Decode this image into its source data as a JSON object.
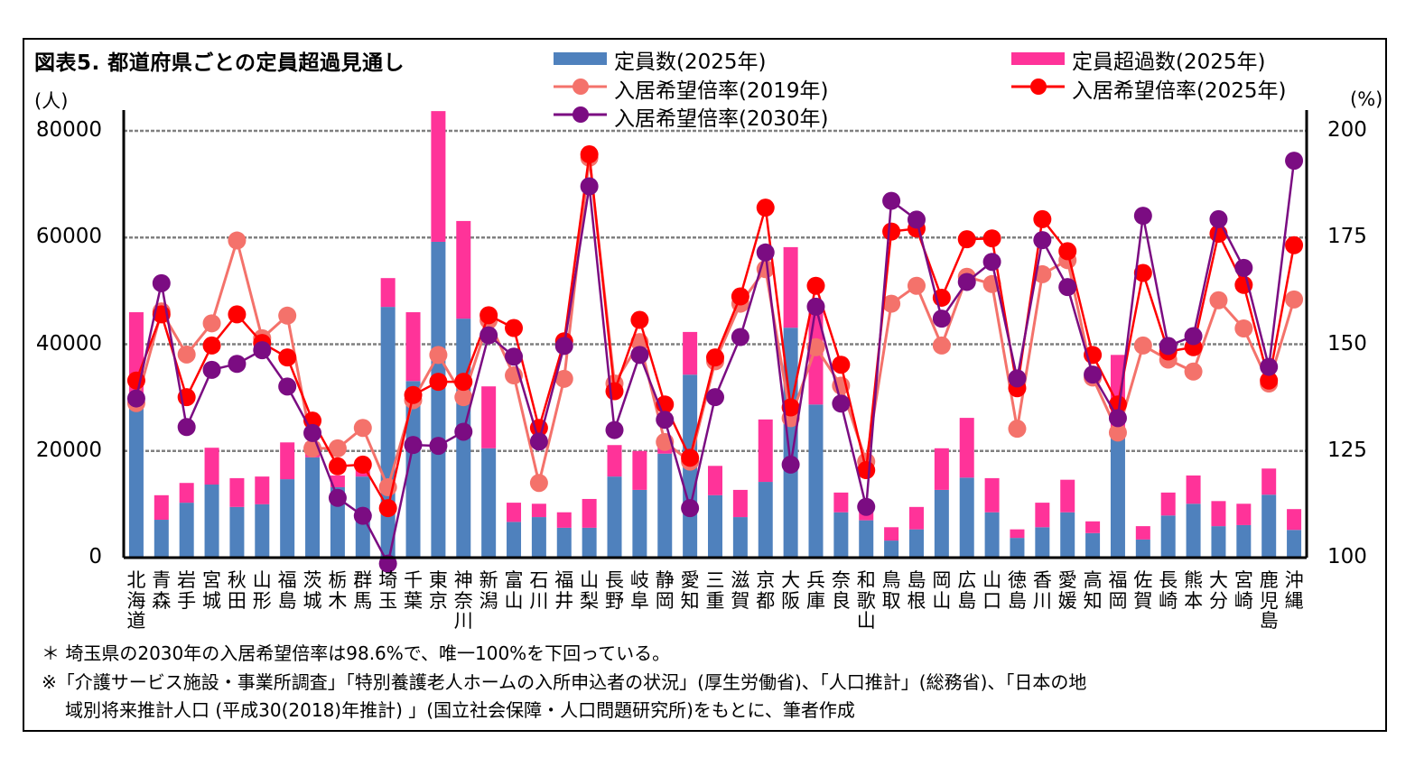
{
  "title": "図表5.  都道府県ごとの定員超過見通し",
  "left_unit": "(人)",
  "right_unit": "(%)",
  "colors": {
    "capacity": "#4F81BD",
    "excess": "#FF3399",
    "rate2019": "#F4726B",
    "rate2025": "#FF0000",
    "rate2030": "#7B0C82",
    "grid": "#808080"
  },
  "legend": {
    "capacity": "定員数(2025年)",
    "excess": "定員超過数(2025年)",
    "rate2019": "入居希望倍率(2019年)",
    "rate2025": "入居希望倍率(2025年)",
    "rate2030": "入居希望倍率(2030年)"
  },
  "notes": {
    "asterisk": "＊ 埼玉県の2030年の入居希望倍率は98.6%で、唯一100%を下回っている。",
    "source_line1": "※「介護サービス施設・事業所調査」「特別養護老人ホームの入所申込者の状況」(厚生労働省)、「人口推計」(総務省)、「日本の地",
    "source_line2": "域別将来推計人口 (平成30(2018)年推計) 」(国立社会保障・人口問題研究所)をもとに、筆者作成"
  },
  "chart_data": {
    "type": "bar+line",
    "legend_position": "top",
    "grid": true,
    "ylim_left": [
      0,
      80000
    ],
    "yticks_left": [
      "0",
      "20000",
      "40000",
      "60000",
      "80000"
    ],
    "ylim_right": [
      100,
      200
    ],
    "yticks_right": [
      "100",
      "125",
      "150",
      "175",
      "200"
    ],
    "categories": [
      "北海道",
      "青森",
      "岩手",
      "宮城",
      "秋田",
      "山形",
      "福島",
      "茨城",
      "栃木",
      "群馬",
      "埼玉",
      "千葉",
      "東京",
      "神奈川",
      "新潟",
      "富山",
      "石川",
      "福井",
      "山梨",
      "長野",
      "岐阜",
      "静岡",
      "愛知",
      "三重",
      "滋賀",
      "京都",
      "大阪",
      "兵庫",
      "奈良",
      "和歌山",
      "鳥取",
      "島根",
      "岡山",
      "広島",
      "山口",
      "徳島",
      "香川",
      "愛媛",
      "高知",
      "福岡",
      "佐賀",
      "長崎",
      "熊本",
      "大分",
      "宮崎",
      "鹿児島",
      "沖縄"
    ],
    "bar_series": [
      {
        "name": "定員数(2025年)",
        "axis": "left",
        "values": [
          29500,
          7100,
          10300,
          13700,
          9500,
          10000,
          14700,
          18800,
          13200,
          15200,
          47000,
          33100,
          59200,
          44800,
          20500,
          6700,
          7600,
          5600,
          5600,
          15200,
          12700,
          19500,
          34300,
          11700,
          7600,
          14200,
          43100,
          28700,
          8500,
          7000,
          3200,
          5300,
          12700,
          15000,
          8500,
          3700,
          5700,
          8500,
          4600,
          22500,
          3400,
          7900,
          10100,
          5900,
          6100,
          11800,
          5200
        ]
      },
      {
        "name": "定員超過数(2025年)",
        "axis": "left",
        "values": [
          16500,
          4600,
          3700,
          6900,
          5400,
          5200,
          6900,
          2800,
          2200,
          1400,
          5400,
          12900,
          24500,
          18300,
          11600,
          3600,
          2500,
          2900,
          5400,
          5900,
          7300,
          2500,
          8000,
          5500,
          5100,
          11700,
          15100,
          17800,
          3700,
          1700,
          2500,
          4200,
          7800,
          11200,
          6400,
          1600,
          4600,
          6100,
          2200,
          15500,
          2500,
          4300,
          5300,
          4700,
          4000,
          4900,
          3900
        ]
      }
    ],
    "line_series": [
      {
        "name": "入居希望倍率(2019年)",
        "axis": "right",
        "values": [
          136.2,
          157.7,
          147.6,
          154.9,
          174.3,
          151.4,
          156.7,
          125.6,
          125.6,
          130.4,
          116.5,
          136.9,
          147.5,
          137.6,
          155.6,
          142.7,
          117.5,
          141.9,
          193.7,
          140.8,
          150.5,
          127.1,
          122.5,
          146.0,
          159.5,
          167.6,
          132.7,
          149.3,
          140.3,
          122.5,
          159.5,
          163.7,
          149.7,
          165.8,
          164.1,
          130.2,
          166.4,
          169.7,
          142.2,
          129.3,
          149.7,
          146.4,
          143.6,
          160.3,
          153.7,
          140.8,
          160.5
        ]
      },
      {
        "name": "入居希望倍率(2025年)",
        "axis": "right",
        "values": [
          141.5,
          157.0,
          137.6,
          149.7,
          157.0,
          150.3,
          146.9,
          132.1,
          121.4,
          121.8,
          111.6,
          138.1,
          141.2,
          141.2,
          156.8,
          153.8,
          130.4,
          150.7,
          194.5,
          139.0,
          155.7,
          135.9,
          123.4,
          146.9,
          161.2,
          182.0,
          135.2,
          163.7,
          145.2,
          120.5,
          176.4,
          177.1,
          160.9,
          174.6,
          174.8,
          139.7,
          179.3,
          171.8,
          147.5,
          135.9,
          166.7,
          148.3,
          149.3,
          175.9,
          163.9,
          141.5,
          173.2
        ]
      },
      {
        "name": "入居希望倍率(2030年)",
        "axis": "right",
        "values": [
          137.3,
          164.3,
          130.6,
          144.0,
          145.4,
          148.6,
          140.1,
          129.2,
          114.0,
          109.8,
          98.6,
          126.4,
          126.2,
          129.5,
          152.1,
          147.1,
          127.2,
          149.6,
          187.0,
          129.9,
          147.5,
          132.3,
          111.6,
          137.6,
          151.7,
          171.5,
          121.8,
          158.8,
          136.1,
          111.9,
          183.6,
          179.2,
          156.0,
          164.6,
          169.3,
          142.0,
          174.4,
          163.4,
          142.9,
          132.7,
          180.1,
          149.6,
          151.9,
          179.3,
          167.9,
          144.7,
          193.0
        ]
      }
    ]
  }
}
